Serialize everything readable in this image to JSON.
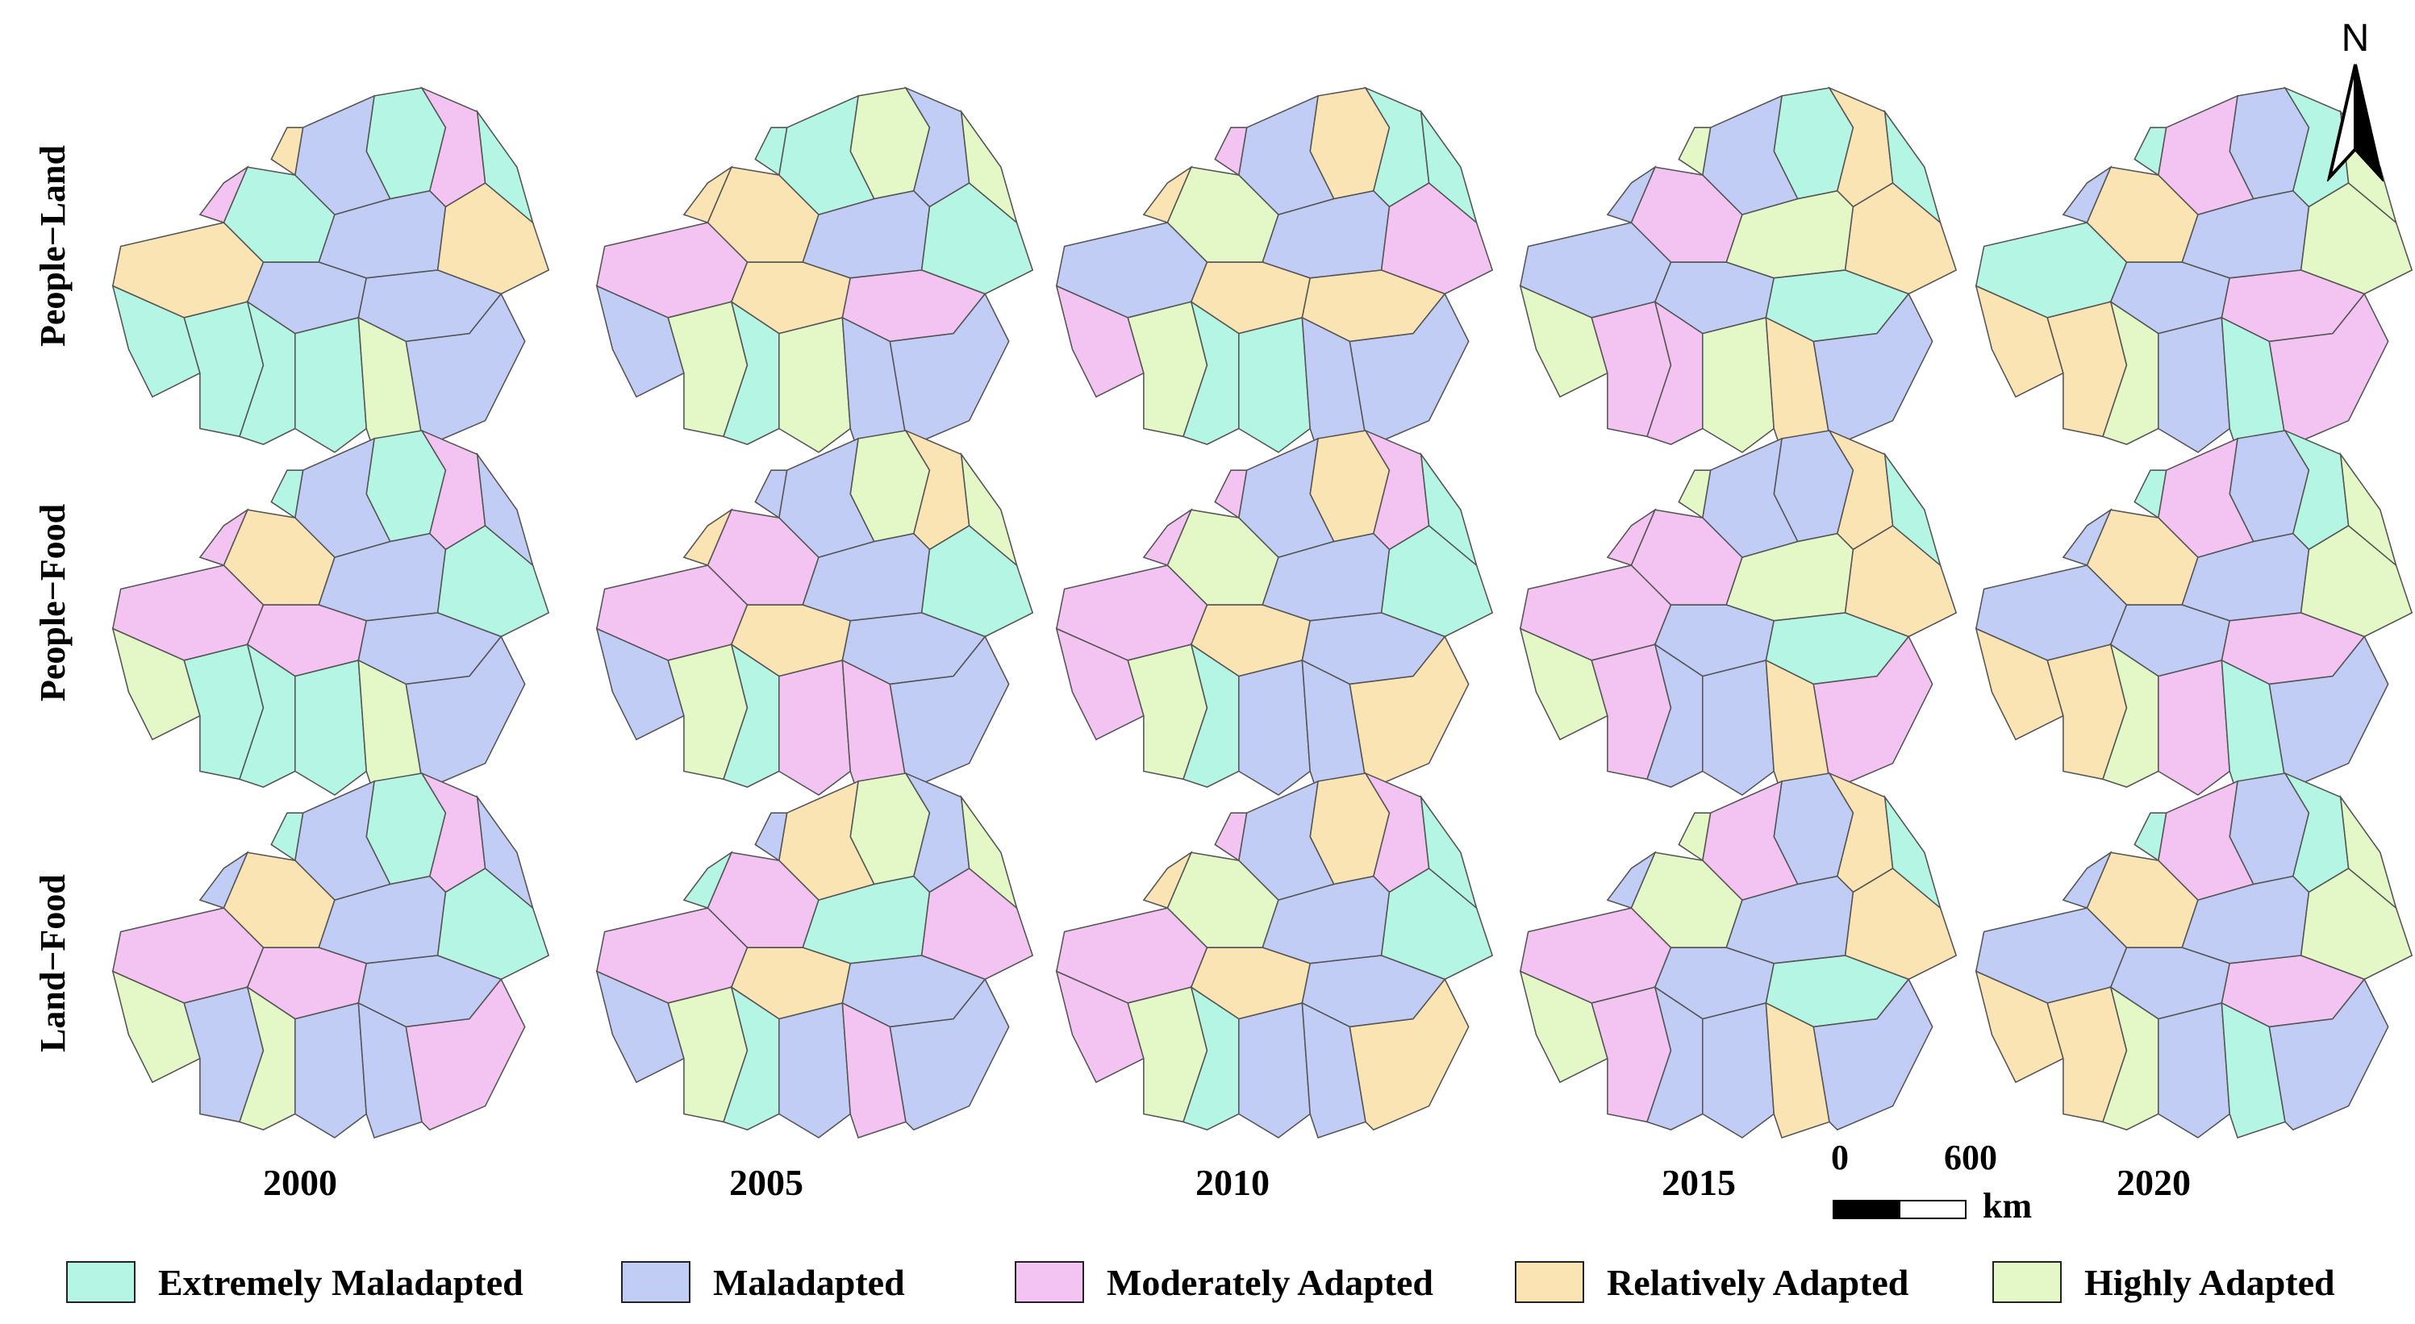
{
  "rows": [
    "People−Land",
    "People−Food",
    "Land−Food"
  ],
  "years": [
    "2000",
    "2005",
    "2010",
    "2015",
    "2020"
  ],
  "legend": [
    {
      "label": "Extremely Maladapted",
      "color": "#b5f5e3"
    },
    {
      "label": "Maladapted",
      "color": "#c2cdf5"
    },
    {
      "label": "Moderately Adapted",
      "color": "#f3c4f2"
    },
    {
      "label": "Relatively Adapted",
      "color": "#fbe4b3"
    },
    {
      "label": "Highly Adapted",
      "color": "#e4f7c6"
    }
  ],
  "north_label": "N",
  "scale": {
    "zero": "0",
    "max": "600",
    "unit": "km"
  },
  "palette_order": [
    "#b5f5e3",
    "#c2cdf5",
    "#f3c4f2",
    "#fbe4b3",
    "#e4f7c6"
  ],
  "maps": [
    [
      "EMPEMRRMMEEEEBMPRE",
      "BEMRMEPRPMBEBMMREB",
      "RMEBMPMRRPBEEMMRPE",
      "EMRPBRMMEBPPBRMMBE",
      "MPERMBEMPRRBMEPMEB"
    ],
    [
      "EMPRMEPPMBEEEBMPEM",
      "BMRPMEPRMMBEPPMRMB",
      "RMPBMEPRMPBEMMRPPE",
      "MMRPBRPMEBPMMRPPBE",
      "MPERMBMMPRRBPEMMEB"
    ],
    [
      "EMPRMEPPMBMBMMPMEM",
      "BRMPEPPRMMBEMPMEMB",
      "RMPBMEPRMPBEMMRRPE",
      "MPRBMRPMEBPMMRMMBE",
      "MPERMBMMPRRBMEMMEB"
    ]
  ]
}
